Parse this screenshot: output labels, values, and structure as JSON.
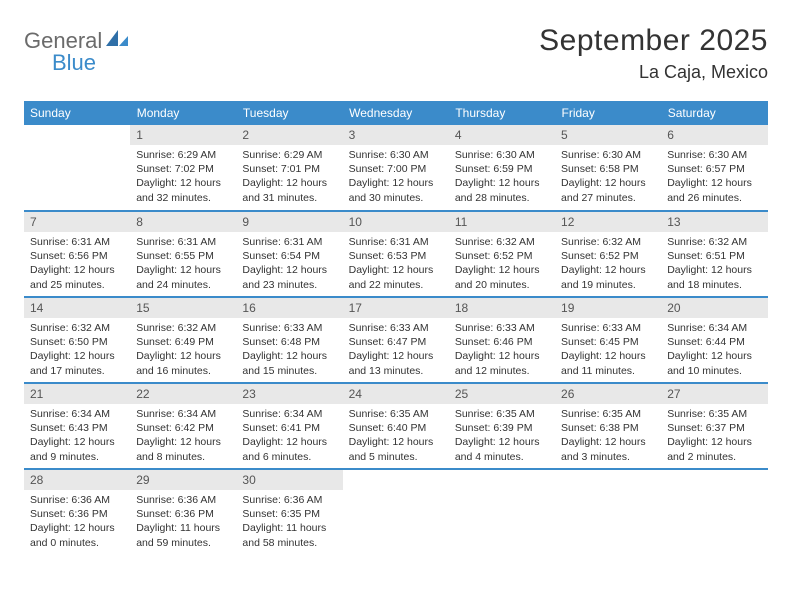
{
  "brand": {
    "word1": "General",
    "word2": "Blue"
  },
  "title": "September 2025",
  "location": "La Caja, Mexico",
  "colors": {
    "header_bg": "#3b8bca",
    "header_text": "#ffffff",
    "daynum_bg": "#e8e8e8",
    "daynum_text": "#555555",
    "body_text": "#333333",
    "divider": "#3b8bca",
    "logo_gray": "#6b6b6b",
    "logo_blue": "#3b8bca",
    "page_bg": "#ffffff"
  },
  "typography": {
    "title_fontsize": 30,
    "location_fontsize": 18,
    "weekday_fontsize": 12,
    "daynum_fontsize": 12,
    "cell_fontsize": 10.5,
    "logo_fontsize": 22
  },
  "weekdays": [
    "Sunday",
    "Monday",
    "Tuesday",
    "Wednesday",
    "Thursday",
    "Friday",
    "Saturday"
  ],
  "weeks": [
    [
      {
        "n": "",
        "lines": [
          "",
          "",
          "",
          ""
        ]
      },
      {
        "n": "1",
        "lines": [
          "Sunrise: 6:29 AM",
          "Sunset: 7:02 PM",
          "Daylight: 12 hours",
          "and 32 minutes."
        ]
      },
      {
        "n": "2",
        "lines": [
          "Sunrise: 6:29 AM",
          "Sunset: 7:01 PM",
          "Daylight: 12 hours",
          "and 31 minutes."
        ]
      },
      {
        "n": "3",
        "lines": [
          "Sunrise: 6:30 AM",
          "Sunset: 7:00 PM",
          "Daylight: 12 hours",
          "and 30 minutes."
        ]
      },
      {
        "n": "4",
        "lines": [
          "Sunrise: 6:30 AM",
          "Sunset: 6:59 PM",
          "Daylight: 12 hours",
          "and 28 minutes."
        ]
      },
      {
        "n": "5",
        "lines": [
          "Sunrise: 6:30 AM",
          "Sunset: 6:58 PM",
          "Daylight: 12 hours",
          "and 27 minutes."
        ]
      },
      {
        "n": "6",
        "lines": [
          "Sunrise: 6:30 AM",
          "Sunset: 6:57 PM",
          "Daylight: 12 hours",
          "and 26 minutes."
        ]
      }
    ],
    [
      {
        "n": "7",
        "lines": [
          "Sunrise: 6:31 AM",
          "Sunset: 6:56 PM",
          "Daylight: 12 hours",
          "and 25 minutes."
        ]
      },
      {
        "n": "8",
        "lines": [
          "Sunrise: 6:31 AM",
          "Sunset: 6:55 PM",
          "Daylight: 12 hours",
          "and 24 minutes."
        ]
      },
      {
        "n": "9",
        "lines": [
          "Sunrise: 6:31 AM",
          "Sunset: 6:54 PM",
          "Daylight: 12 hours",
          "and 23 minutes."
        ]
      },
      {
        "n": "10",
        "lines": [
          "Sunrise: 6:31 AM",
          "Sunset: 6:53 PM",
          "Daylight: 12 hours",
          "and 22 minutes."
        ]
      },
      {
        "n": "11",
        "lines": [
          "Sunrise: 6:32 AM",
          "Sunset: 6:52 PM",
          "Daylight: 12 hours",
          "and 20 minutes."
        ]
      },
      {
        "n": "12",
        "lines": [
          "Sunrise: 6:32 AM",
          "Sunset: 6:52 PM",
          "Daylight: 12 hours",
          "and 19 minutes."
        ]
      },
      {
        "n": "13",
        "lines": [
          "Sunrise: 6:32 AM",
          "Sunset: 6:51 PM",
          "Daylight: 12 hours",
          "and 18 minutes."
        ]
      }
    ],
    [
      {
        "n": "14",
        "lines": [
          "Sunrise: 6:32 AM",
          "Sunset: 6:50 PM",
          "Daylight: 12 hours",
          "and 17 minutes."
        ]
      },
      {
        "n": "15",
        "lines": [
          "Sunrise: 6:32 AM",
          "Sunset: 6:49 PM",
          "Daylight: 12 hours",
          "and 16 minutes."
        ]
      },
      {
        "n": "16",
        "lines": [
          "Sunrise: 6:33 AM",
          "Sunset: 6:48 PM",
          "Daylight: 12 hours",
          "and 15 minutes."
        ]
      },
      {
        "n": "17",
        "lines": [
          "Sunrise: 6:33 AM",
          "Sunset: 6:47 PM",
          "Daylight: 12 hours",
          "and 13 minutes."
        ]
      },
      {
        "n": "18",
        "lines": [
          "Sunrise: 6:33 AM",
          "Sunset: 6:46 PM",
          "Daylight: 12 hours",
          "and 12 minutes."
        ]
      },
      {
        "n": "19",
        "lines": [
          "Sunrise: 6:33 AM",
          "Sunset: 6:45 PM",
          "Daylight: 12 hours",
          "and 11 minutes."
        ]
      },
      {
        "n": "20",
        "lines": [
          "Sunrise: 6:34 AM",
          "Sunset: 6:44 PM",
          "Daylight: 12 hours",
          "and 10 minutes."
        ]
      }
    ],
    [
      {
        "n": "21",
        "lines": [
          "Sunrise: 6:34 AM",
          "Sunset: 6:43 PM",
          "Daylight: 12 hours",
          "and 9 minutes."
        ]
      },
      {
        "n": "22",
        "lines": [
          "Sunrise: 6:34 AM",
          "Sunset: 6:42 PM",
          "Daylight: 12 hours",
          "and 8 minutes."
        ]
      },
      {
        "n": "23",
        "lines": [
          "Sunrise: 6:34 AM",
          "Sunset: 6:41 PM",
          "Daylight: 12 hours",
          "and 6 minutes."
        ]
      },
      {
        "n": "24",
        "lines": [
          "Sunrise: 6:35 AM",
          "Sunset: 6:40 PM",
          "Daylight: 12 hours",
          "and 5 minutes."
        ]
      },
      {
        "n": "25",
        "lines": [
          "Sunrise: 6:35 AM",
          "Sunset: 6:39 PM",
          "Daylight: 12 hours",
          "and 4 minutes."
        ]
      },
      {
        "n": "26",
        "lines": [
          "Sunrise: 6:35 AM",
          "Sunset: 6:38 PM",
          "Daylight: 12 hours",
          "and 3 minutes."
        ]
      },
      {
        "n": "27",
        "lines": [
          "Sunrise: 6:35 AM",
          "Sunset: 6:37 PM",
          "Daylight: 12 hours",
          "and 2 minutes."
        ]
      }
    ],
    [
      {
        "n": "28",
        "lines": [
          "Sunrise: 6:36 AM",
          "Sunset: 6:36 PM",
          "Daylight: 12 hours",
          "and 0 minutes."
        ]
      },
      {
        "n": "29",
        "lines": [
          "Sunrise: 6:36 AM",
          "Sunset: 6:36 PM",
          "Daylight: 11 hours",
          "and 59 minutes."
        ]
      },
      {
        "n": "30",
        "lines": [
          "Sunrise: 6:36 AM",
          "Sunset: 6:35 PM",
          "Daylight: 11 hours",
          "and 58 minutes."
        ]
      },
      {
        "n": "",
        "lines": [
          "",
          "",
          "",
          ""
        ]
      },
      {
        "n": "",
        "lines": [
          "",
          "",
          "",
          ""
        ]
      },
      {
        "n": "",
        "lines": [
          "",
          "",
          "",
          ""
        ]
      },
      {
        "n": "",
        "lines": [
          "",
          "",
          "",
          ""
        ]
      }
    ]
  ]
}
